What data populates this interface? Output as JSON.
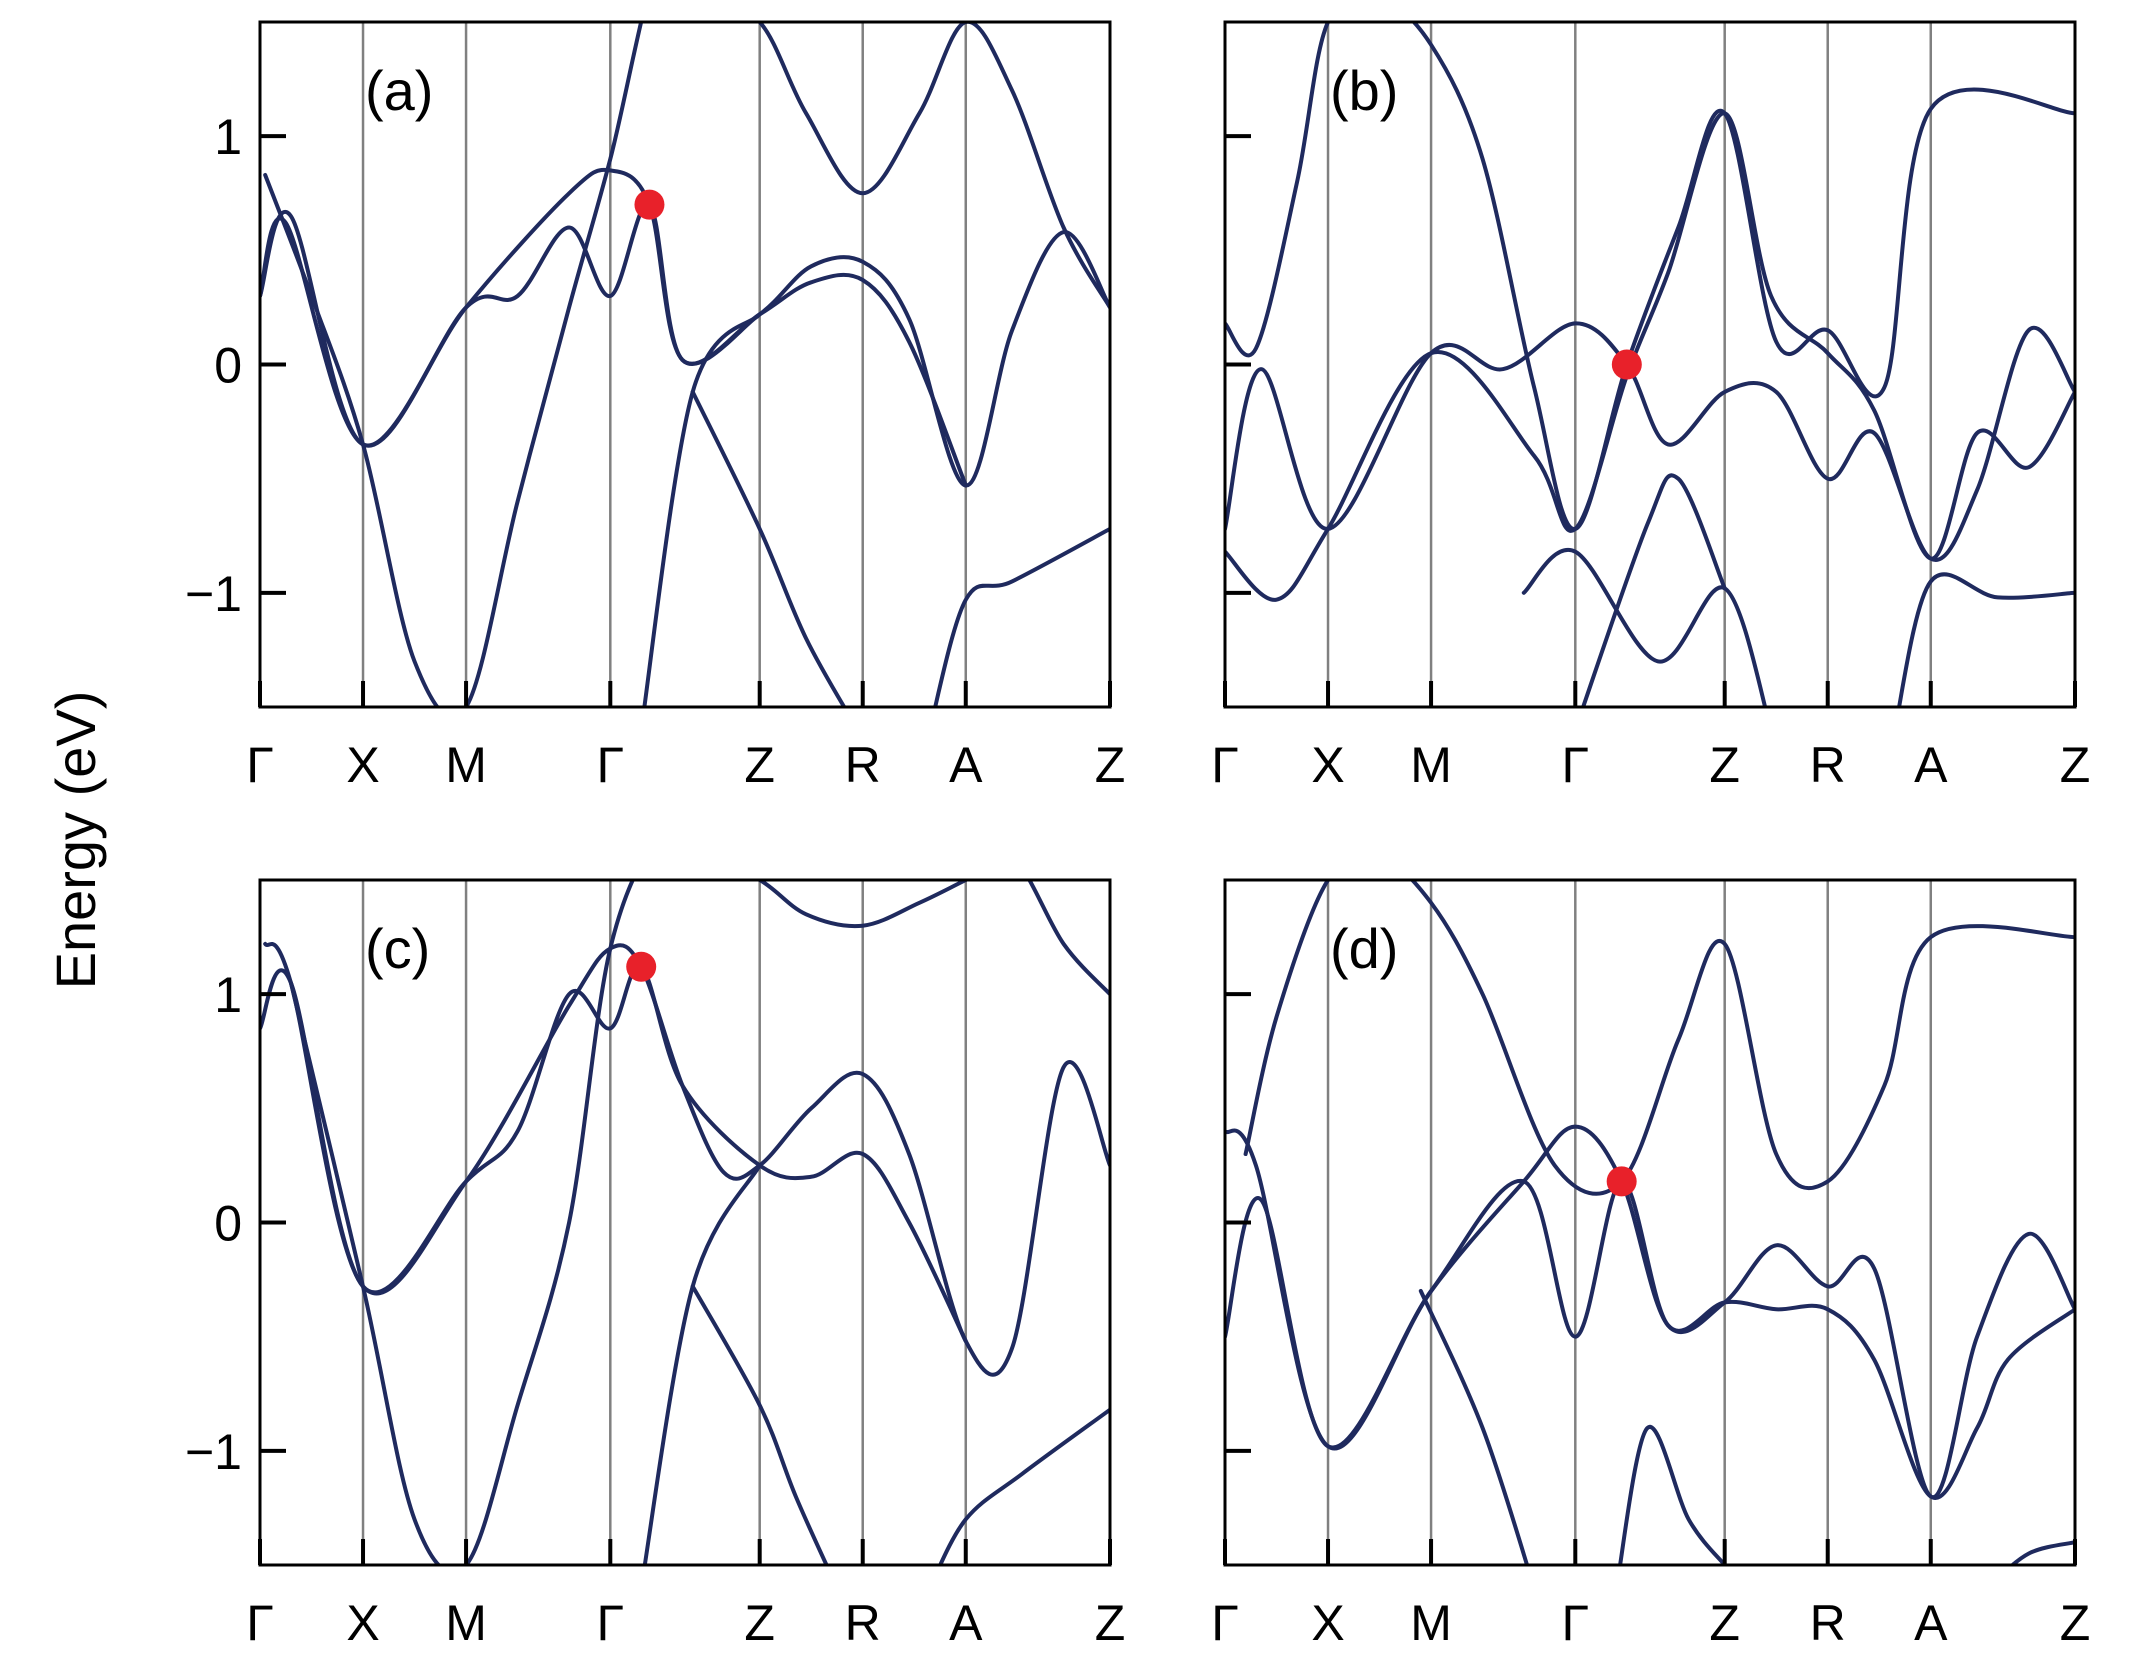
{
  "figure": {
    "ylabel": "Energy (eV)"
  },
  "colors": {
    "band": "#1f2a5e",
    "kline": "#808080",
    "frame": "#000000",
    "crossing": "#e8212a"
  },
  "chart_data": [
    {
      "type": "line",
      "panel_label": "(a)",
      "ylim": [
        -1.5,
        1.5
      ],
      "yticks": [
        1,
        0,
        -1
      ],
      "ytick_labels": [
        "1",
        "0",
        "−1"
      ],
      "kpoints": [
        "Γ",
        "X",
        "M",
        "Γ",
        "Z",
        "R",
        "A",
        "Z"
      ],
      "kpoint_positions": [
        0,
        1,
        2,
        3.4,
        4.85,
        5.85,
        6.85,
        8.25
      ],
      "crossing_point": {
        "x": 3.78,
        "y": 0.7
      },
      "series": [
        {
          "x": [
            0,
            0.3,
            1,
            2,
            3,
            3.4,
            3.78,
            4.1,
            4.85,
            5.35,
            5.85,
            6.3,
            6.85,
            7.3,
            7.8,
            8.25
          ],
          "y": [
            0.3,
            0.65,
            -0.35,
            0.25,
            0.75,
            0.85,
            0.7,
            0.02,
            0.22,
            0.43,
            0.45,
            0.2,
            -0.53,
            0.15,
            0.58,
            0.25
          ]
        },
        {
          "x": [
            0,
            0.25,
            1,
            2,
            2.5,
            3,
            3.4,
            3.78,
            4.1,
            4.85,
            5.35,
            5.85,
            6.3,
            6.85
          ],
          "y": [
            0.3,
            0.62,
            -0.35,
            0.25,
            0.3,
            0.6,
            0.3,
            0.7,
            0.02,
            0.22,
            0.36,
            0.37,
            0.1,
            -0.53
          ]
        },
        {
          "x": [
            0.05,
            0.5,
            1,
            1.5,
            2,
            2.5,
            3,
            3.4,
            3.9,
            4.3,
            4.85,
            5.3,
            5.85,
            6.4,
            6.85,
            7.3,
            7.8,
            8.25
          ],
          "y": [
            0.83,
            0.3,
            -0.35,
            -1.3,
            -1.5,
            -0.6,
            0.25,
            0.9,
            1.8,
            1.6,
            1.5,
            1.1,
            0.75,
            1.1,
            1.5,
            1.2,
            0.6,
            0.25
          ]
        },
        {
          "x": [
            4.2,
            4.85,
            5.3,
            5.8
          ],
          "y": [
            -0.12,
            -0.72,
            -1.2,
            -1.6
          ]
        },
        {
          "x": [
            3.7,
            4.2,
            4.85
          ],
          "y": [
            -1.6,
            -0.12,
            0.22
          ]
        },
        {
          "x": [
            6.5,
            6.85,
            7.3,
            8.25
          ],
          "y": [
            -1.6,
            -1.03,
            -0.95,
            -0.72
          ]
        }
      ]
    },
    {
      "type": "line",
      "panel_label": "(b)",
      "ylim": [
        -1.5,
        1.5
      ],
      "yticks": [
        1,
        0,
        -1
      ],
      "ytick_labels": [
        "1",
        "0",
        "−1"
      ],
      "kpoints": [
        "Γ",
        "X",
        "M",
        "Γ",
        "Z",
        "R",
        "A",
        "Z"
      ],
      "kpoint_positions": [
        0,
        1,
        2,
        3.4,
        4.85,
        5.85,
        6.85,
        8.25
      ],
      "crossing_point": {
        "x": 3.9,
        "y": 0.0
      },
      "series": [
        {
          "x": [
            0,
            0.35,
            1,
            2,
            2.7,
            3.4,
            3.9,
            4.3,
            4.85,
            5.35,
            5.85,
            6.3,
            6.85,
            7.3,
            7.8,
            8.25
          ],
          "y": [
            -0.72,
            -0.02,
            -0.72,
            0.05,
            -0.02,
            0.18,
            0.0,
            -0.35,
            -0.12,
            -0.12,
            -0.5,
            -0.3,
            -0.85,
            -0.55,
            0.15,
            -0.12
          ]
        },
        {
          "x": [
            0,
            0.5,
            1,
            2,
            3,
            3.4,
            3.9,
            4.3,
            4.85,
            5.3,
            5.85,
            6.3,
            6.85,
            7.3,
            7.8,
            8.25
          ],
          "y": [
            -0.82,
            -1.03,
            -0.72,
            0.05,
            -0.4,
            -0.72,
            -0.05,
            0.4,
            1.1,
            0.3,
            0.05,
            -0.2,
            -0.85,
            -0.3,
            -0.45,
            -0.12
          ]
        },
        {
          "x": [
            0,
            0.3,
            0.7,
            1,
            1.5,
            2,
            2.5,
            3,
            3.4,
            3.9,
            4.4,
            4.85,
            5.35,
            5.85,
            6.4,
            6.85,
            8.25
          ],
          "y": [
            0.18,
            0.07,
            0.8,
            1.5,
            1.6,
            1.4,
            0.9,
            -0.1,
            -0.72,
            0.0,
            0.6,
            1.1,
            0.1,
            0.15,
            -0.1,
            1.12,
            1.1
          ]
        },
        {
          "x": [
            2.9,
            3.4,
            4.2,
            4.85,
            5.3
          ],
          "y": [
            -1.0,
            -0.82,
            -1.3,
            -0.98,
            -1.6
          ]
        },
        {
          "x": [
            3.4,
            4.1,
            4.4,
            4.85
          ],
          "y": [
            -1.6,
            -0.7,
            -0.5,
            -0.98
          ]
        },
        {
          "x": [
            6.5,
            6.85,
            7.5,
            8.25
          ],
          "y": [
            -1.6,
            -0.95,
            -1.02,
            -1.0
          ]
        }
      ]
    },
    {
      "type": "line",
      "panel_label": "(c)",
      "ylim": [
        -1.5,
        1.5
      ],
      "yticks": [
        1,
        0,
        -1
      ],
      "ytick_labels": [
        "1",
        "0",
        "−1"
      ],
      "kpoints": [
        "Γ",
        "X",
        "M",
        "Γ",
        "Z",
        "R",
        "A",
        "Z"
      ],
      "kpoint_positions": [
        0,
        1,
        2,
        3.4,
        4.85,
        5.85,
        6.85,
        8.25
      ],
      "crossing_point": {
        "x": 3.7,
        "y": 1.12
      },
      "series": [
        {
          "x": [
            0,
            0.3,
            1,
            2,
            3,
            3.4,
            3.7,
            4.1,
            4.5,
            4.85,
            5.35,
            5.85,
            6.3,
            6.85,
            7.3,
            7.8,
            8.25
          ],
          "y": [
            0.85,
            1.05,
            -0.28,
            0.18,
            0.95,
            1.2,
            1.12,
            0.6,
            0.22,
            0.25,
            0.5,
            0.65,
            0.3,
            -0.52,
            -0.55,
            0.68,
            0.25
          ]
        },
        {
          "x": [
            0.05,
            0.3,
            1,
            2,
            2.5,
            3,
            3.4,
            3.7,
            4.1,
            4.85,
            5.35,
            5.85,
            6.3,
            6.85
          ],
          "y": [
            1.22,
            1.05,
            -0.28,
            0.18,
            0.4,
            1.0,
            0.85,
            1.12,
            0.6,
            0.25,
            0.2,
            0.3,
            0.0,
            -0.52
          ]
        },
        {
          "x": [
            0.3,
            1,
            1.5,
            2,
            2.5,
            3,
            3.4,
            3.9,
            4.3,
            4.85,
            5.3,
            5.85,
            6.4,
            6.85,
            7.3,
            7.8,
            8.25
          ],
          "y": [
            1.05,
            -0.28,
            -1.3,
            -1.5,
            -0.8,
            0.0,
            1.2,
            1.7,
            1.6,
            1.5,
            1.35,
            1.3,
            1.4,
            1.5,
            1.6,
            1.22,
            1.0
          ]
        },
        {
          "x": [
            4.2,
            4.85,
            5.2,
            5.6
          ],
          "y": [
            -0.28,
            -0.8,
            -1.2,
            -1.6
          ]
        },
        {
          "x": [
            3.7,
            4.2,
            4.85
          ],
          "y": [
            -1.6,
            -0.28,
            0.25
          ]
        },
        {
          "x": [
            6.5,
            6.85,
            7.4,
            8.25
          ],
          "y": [
            -1.6,
            -1.3,
            -1.1,
            -0.82
          ]
        }
      ]
    },
    {
      "type": "line",
      "panel_label": "(d)",
      "ylim": [
        -1.5,
        1.5
      ],
      "yticks": [
        1,
        0,
        -1
      ],
      "ytick_labels": [
        "1",
        "0",
        "−1"
      ],
      "kpoints": [
        "Γ",
        "X",
        "M",
        "Γ",
        "Z",
        "R",
        "A",
        "Z"
      ],
      "kpoint_positions": [
        0,
        1,
        2,
        3.4,
        4.85,
        5.85,
        6.85,
        8.25
      ],
      "crossing_point": {
        "x": 3.85,
        "y": 0.18
      },
      "series": [
        {
          "x": [
            0,
            0.35,
            1,
            2,
            2.9,
            3.4,
            3.85,
            4.3,
            4.85,
            5.35,
            5.85,
            6.3,
            6.85,
            7.3,
            7.8,
            8.25
          ],
          "y": [
            -0.5,
            0.1,
            -0.98,
            -0.3,
            0.18,
            -0.5,
            0.18,
            -0.45,
            -0.35,
            -0.1,
            -0.28,
            -0.2,
            -1.2,
            -0.5,
            -0.05,
            -0.38
          ]
        },
        {
          "x": [
            0,
            0.3,
            1,
            2,
            2.9,
            3.4,
            3.85,
            4.3,
            4.85,
            5.35,
            5.85,
            6.3,
            6.85,
            7.3,
            7.6,
            8.25
          ],
          "y": [
            0.4,
            0.25,
            -0.98,
            -0.3,
            0.18,
            0.42,
            0.18,
            -0.45,
            -0.35,
            -0.38,
            -0.38,
            -0.6,
            -1.2,
            -0.9,
            -0.6,
            -0.38
          ]
        },
        {
          "x": [
            0.2,
            0.5,
            1,
            1.5,
            2,
            2.5,
            3.2,
            3.85,
            4.4,
            4.85,
            5.35,
            5.85,
            6.4,
            6.85,
            8.25
          ],
          "y": [
            0.3,
            0.9,
            1.5,
            1.6,
            1.4,
            1.0,
            0.25,
            0.18,
            0.8,
            1.22,
            0.3,
            0.18,
            0.6,
            1.25,
            1.25
          ]
        },
        {
          "x": [
            1.9,
            2.5,
            3.0
          ],
          "y": [
            -0.3,
            -0.9,
            -1.6
          ]
        },
        {
          "x": [
            3.8,
            4.1,
            4.5,
            4.85
          ],
          "y": [
            -1.6,
            -0.9,
            -1.3,
            -1.5
          ]
        },
        {
          "x": [
            7.4,
            7.8,
            8.25
          ],
          "y": [
            -1.6,
            -1.45,
            -1.4
          ]
        }
      ]
    }
  ]
}
